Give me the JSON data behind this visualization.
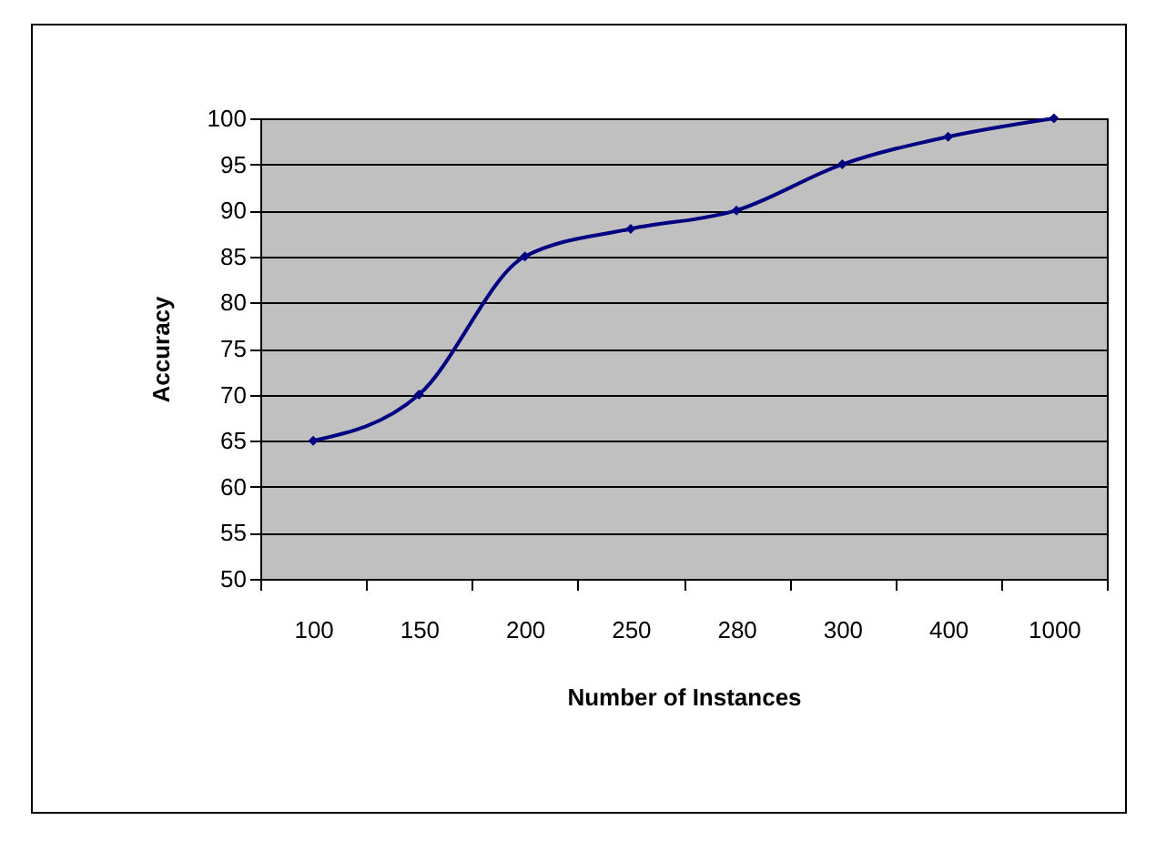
{
  "chart_data": {
    "type": "line",
    "xlabel": "Number of Instances",
    "ylabel": "Accuracy",
    "categories": [
      "100",
      "150",
      "200",
      "250",
      "280",
      "300",
      "400",
      "1000"
    ],
    "series": [
      {
        "color": "#000080",
        "values": [
          65,
          70,
          85,
          88,
          90,
          95,
          98,
          100
        ]
      }
    ],
    "ylim": [
      50,
      100
    ],
    "yticks": [
      50,
      55,
      60,
      65,
      70,
      75,
      80,
      85,
      90,
      95,
      100
    ],
    "grid": "y",
    "marker": "diamond",
    "line_style": "solid"
  }
}
